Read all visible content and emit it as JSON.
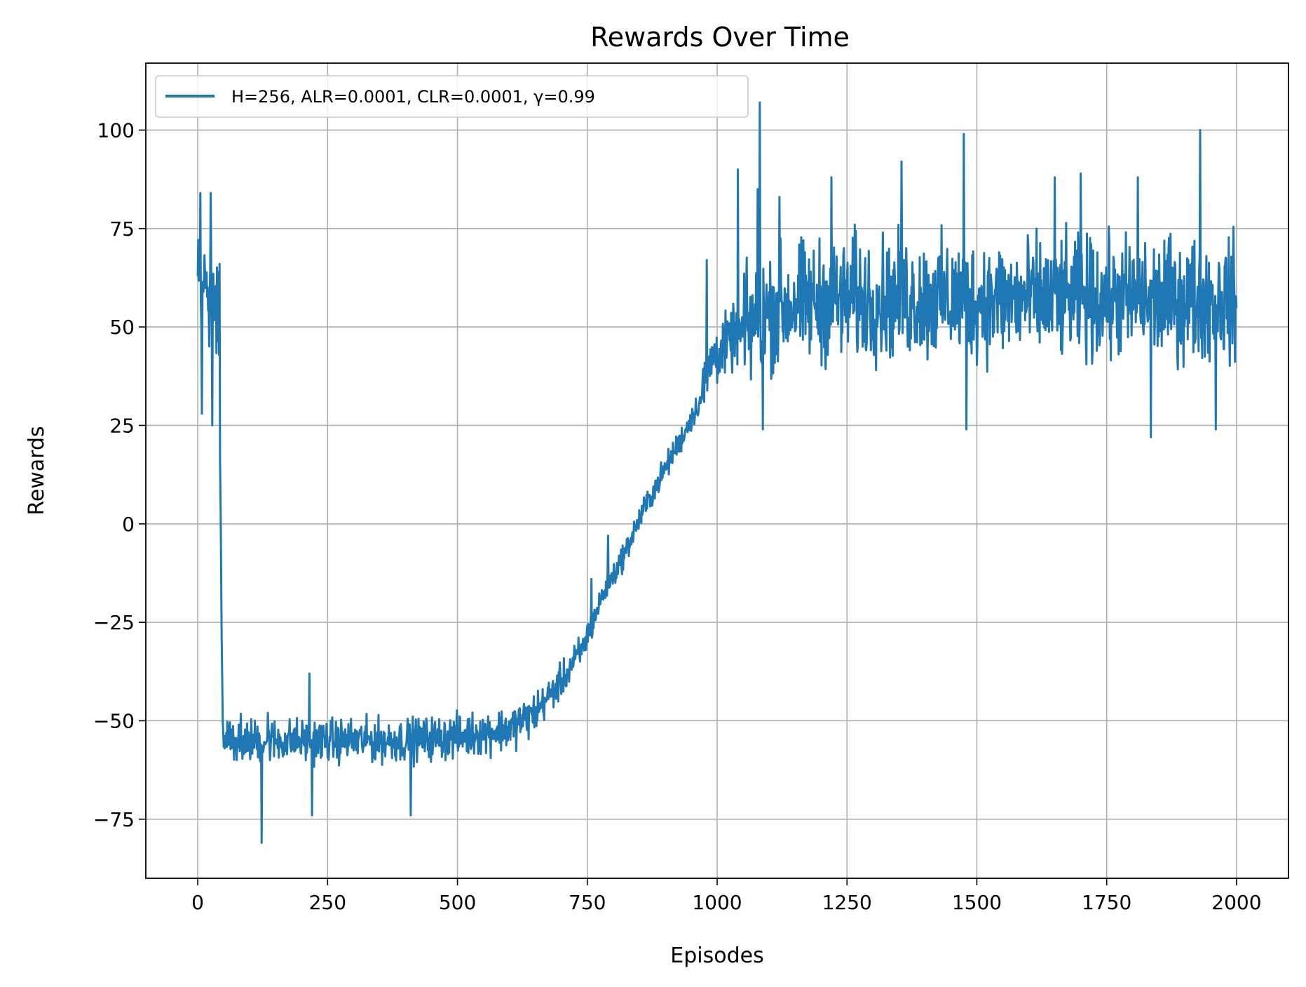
{
  "chart_data": {
    "type": "line",
    "title": "Rewards Over Time",
    "xlabel": "Episodes",
    "ylabel": "Rewards",
    "xlim": [
      -100,
      2100
    ],
    "ylim": [
      -90,
      117
    ],
    "xticks": [
      0,
      250,
      500,
      750,
      1000,
      1250,
      1500,
      1750,
      2000
    ],
    "xtick_labels": [
      "0",
      "250",
      "500",
      "750",
      "1000",
      "1250",
      "1500",
      "1750",
      "2000"
    ],
    "yticks": [
      -75,
      -50,
      -25,
      0,
      25,
      50,
      75,
      100
    ],
    "ytick_labels": [
      "−75",
      "−50",
      "−25",
      "0",
      "25",
      "50",
      "75",
      "100"
    ],
    "grid": true,
    "legend_position": "upper-left",
    "series": [
      {
        "name": "H=256, ALR=0.0001, CLR=0.0001, γ=0.99",
        "color": "#1f77b4",
        "x_range": [
          0,
          2000
        ],
        "trend": [
          [
            0,
            60
          ],
          [
            40,
            58
          ],
          [
            48,
            -53
          ],
          [
            100,
            -55
          ],
          [
            200,
            -55
          ],
          [
            300,
            -55
          ],
          [
            400,
            -55
          ],
          [
            500,
            -54
          ],
          [
            600,
            -52
          ],
          [
            650,
            -48
          ],
          [
            700,
            -40
          ],
          [
            740,
            -32
          ],
          [
            780,
            -18
          ],
          [
            820,
            -8
          ],
          [
            860,
            4
          ],
          [
            900,
            14
          ],
          [
            940,
            24
          ],
          [
            970,
            32
          ],
          [
            990,
            42
          ],
          [
            1040,
            48
          ],
          [
            1100,
            54
          ],
          [
            1150,
            56
          ],
          [
            1300,
            57
          ],
          [
            1500,
            57
          ],
          [
            1700,
            57
          ],
          [
            1900,
            57
          ],
          [
            2000,
            57
          ]
        ],
        "noise_segments": [
          [
            0,
            48,
            14
          ],
          [
            48,
            660,
            5
          ],
          [
            660,
            760,
            4
          ],
          [
            760,
            970,
            3
          ],
          [
            970,
            1050,
            7
          ],
          [
            1050,
            2000,
            14
          ]
        ],
        "spikes": [
          [
            5,
            84
          ],
          [
            8,
            28
          ],
          [
            25,
            84
          ],
          [
            28,
            25
          ],
          [
            42,
            66
          ],
          [
            123,
            -81
          ],
          [
            135,
            -48
          ],
          [
            215,
            -38
          ],
          [
            220,
            -74
          ],
          [
            410,
            -74
          ],
          [
            758,
            -14
          ],
          [
            790,
            -3
          ],
          [
            980,
            67
          ],
          [
            1040,
            90
          ],
          [
            1078,
            85
          ],
          [
            1082,
            107
          ],
          [
            1088,
            24
          ],
          [
            1120,
            83
          ],
          [
            1220,
            88
          ],
          [
            1265,
            76
          ],
          [
            1355,
            92
          ],
          [
            1475,
            99
          ],
          [
            1480,
            24
          ],
          [
            1650,
            88
          ],
          [
            1700,
            89
          ],
          [
            1810,
            88
          ],
          [
            1835,
            22
          ],
          [
            1930,
            100
          ],
          [
            1960,
            24
          ]
        ]
      }
    ]
  }
}
